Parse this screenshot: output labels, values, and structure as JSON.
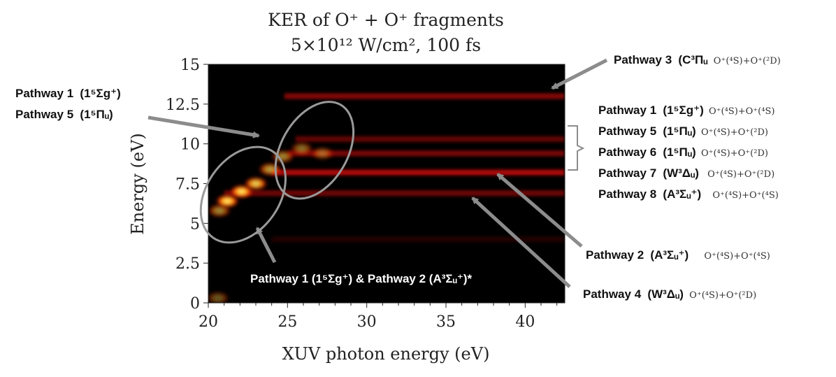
{
  "chart_data": {
    "type": "heatmap",
    "title": "KER of O⁺ + O⁺ fragments",
    "subtitle": "5×10¹² W/cm², 100 fs",
    "xlabel": "XUV photon energy (eV)",
    "ylabel": "Energy (eV)",
    "xlim": [
      20,
      42.5
    ],
    "ylim": [
      0,
      15
    ],
    "xticks": [
      20,
      25,
      30,
      35,
      40
    ],
    "xtick_labels": [
      "20",
      "25",
      "30",
      "35",
      "40"
    ],
    "yticks": [
      0,
      2.5,
      5,
      7.5,
      10,
      12.5,
      15
    ],
    "ytick_labels": [
      "0",
      "2.5",
      "5",
      "7.5",
      "10",
      "12.5",
      "15"
    ],
    "colormap": "black-red-yellow",
    "grid": false,
    "bands": [
      {
        "y": 13.0,
        "x_start": 24.8,
        "x_end": 42.5,
        "intensity": 0.6
      },
      {
        "y": 10.3,
        "x_start": 25.5,
        "x_end": 42.5,
        "intensity": 0.45
      },
      {
        "y": 9.4,
        "x_start": 25.0,
        "x_end": 42.5,
        "intensity": 0.55
      },
      {
        "y": 8.2,
        "x_start": 24.0,
        "x_end": 42.5,
        "intensity": 0.8
      },
      {
        "y": 6.9,
        "x_start": 21.0,
        "x_end": 42.5,
        "intensity": 0.5
      },
      {
        "y": 4.0,
        "x_start": 24.0,
        "x_end": 42.5,
        "intensity": 0.15
      }
    ],
    "hot_spots": [
      {
        "x": 20.7,
        "y": 5.8,
        "intensity": 0.6
      },
      {
        "x": 21.2,
        "y": 6.4,
        "intensity": 1.0
      },
      {
        "x": 22.1,
        "y": 7.0,
        "intensity": 1.0
      },
      {
        "x": 23.0,
        "y": 7.5,
        "intensity": 0.9
      },
      {
        "x": 23.9,
        "y": 8.4,
        "intensity": 0.7
      },
      {
        "x": 24.7,
        "y": 9.2,
        "intensity": 0.6
      },
      {
        "x": 25.9,
        "y": 9.7,
        "intensity": 0.5
      },
      {
        "x": 27.2,
        "y": 9.4,
        "intensity": 0.45
      },
      {
        "x": 20.6,
        "y": 0.3,
        "intensity": 0.4
      }
    ],
    "ellipses": [
      {
        "name": "low-ellipse",
        "cx": 22.2,
        "cy": 6.8,
        "rx": 2.3,
        "ry": 3.3,
        "angle": 35
      },
      {
        "name": "high-ellipse",
        "cx": 26.7,
        "cy": 9.6,
        "rx": 2.1,
        "ry": 3.3,
        "angle": 30
      }
    ]
  },
  "annotations": {
    "top_right": {
      "label": "Pathway 3",
      "state": "(C³Πᵤ",
      "fragments": "O⁺(⁴S)+O⁺(²D)"
    },
    "top_left_line1": {
      "label": "Pathway 1",
      "state": "(1⁵Σg⁺)"
    },
    "top_left_line2": {
      "label": "Pathway 5",
      "state": "(1⁵Πᵤ)"
    },
    "right_list": [
      {
        "label": "Pathway 1",
        "state": "(1⁵Σg⁺)",
        "fragments": "O⁺(⁴S)+O⁺(⁴S)"
      },
      {
        "label": "Pathway 5",
        "state": "(1⁵Πᵤ)",
        "fragments": "O⁺(⁴S)+O⁺(²D)"
      },
      {
        "label": "Pathway 6",
        "state": "(1⁵Πᵤ)",
        "fragments": "O⁺(⁴S)+O⁺(²D)"
      },
      {
        "label": "Pathway 7",
        "state": "(W³Δᵤ)",
        "fragments": "O⁺(⁴S)+O⁺(²D)"
      },
      {
        "label": "Pathway 8",
        "state": "(A³Σᵤ⁺)",
        "fragments": "O⁺(⁴S)+O⁺(⁴S)"
      }
    ],
    "pathway2": {
      "label": "Pathway 2",
      "state": "(A³Σᵤ⁺)",
      "fragments": "O⁺(⁴S)+O⁺(⁴S)"
    },
    "pathway4": {
      "label": "Pathway 4",
      "state": "(W³Δᵤ)",
      "fragments": "O⁺(⁴S)+O⁺(²D)"
    },
    "bottom_inside": {
      "text": "Pathway 1 (1⁵Σg⁺) & Pathway 2 (A³Σᵤ⁺)*"
    }
  },
  "colors": {
    "background": "#000000",
    "band": "#e0100a",
    "hot": "#fff25a",
    "ellipse": "#9a9a9a",
    "arrow": "#8c8c8c"
  }
}
